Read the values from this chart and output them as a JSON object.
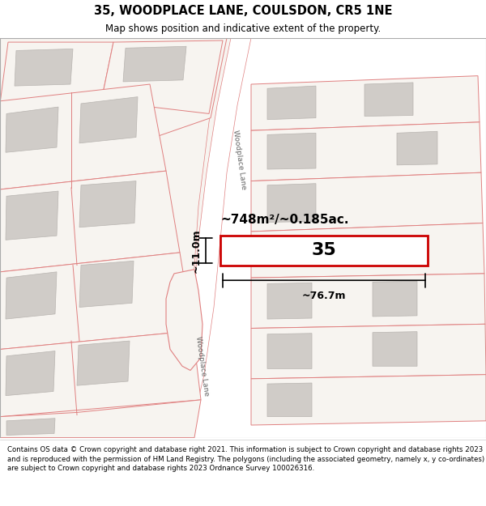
{
  "title": "35, WOODPLACE LANE, COULSDON, CR5 1NE",
  "subtitle": "Map shows position and indicative extent of the property.",
  "footer": "Contains OS data © Crown copyright and database right 2021. This information is subject to Crown copyright and database rights 2023 and is reproduced with the permission of HM Land Registry. The polygons (including the associated geometry, namely x, y co-ordinates) are subject to Crown copyright and database rights 2023 Ordnance Survey 100026316.",
  "area_label": "~748m²/~0.185ac.",
  "width_label": "~76.7m",
  "height_label": "~11.0m",
  "plot_number": "35",
  "map_bg": "#f7f4f0",
  "plot_fill": "#ffffff",
  "plot_outline": "#cc0000",
  "building_fill": "#d0ccc8",
  "boundary_color": "#e08080",
  "road_label": "Woodplace Lane",
  "figsize": [
    6.0,
    6.25
  ],
  "dpi": 100
}
